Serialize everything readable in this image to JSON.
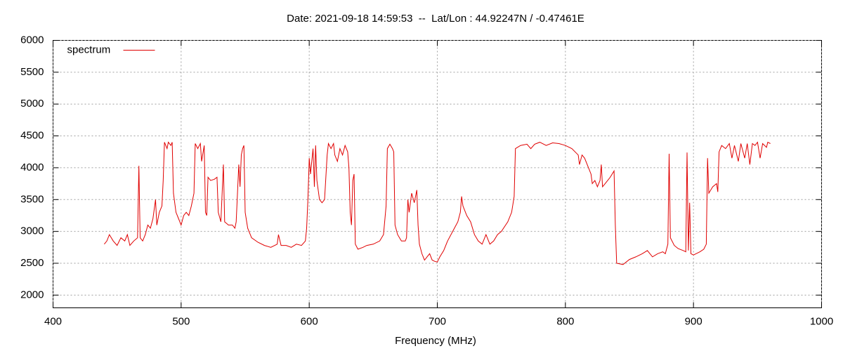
{
  "chart_data": {
    "type": "line",
    "title": "Date: 2021-09-18 14:59:53  --  Lat/Lon : 44.92247N / -0.47461E",
    "x_label": "Frequency (MHz)",
    "xlim": [
      400,
      1000
    ],
    "xticks": [
      400,
      500,
      600,
      700,
      800,
      900,
      1000
    ],
    "ylim": [
      1800,
      6000
    ],
    "yticks": [
      2000,
      2500,
      3000,
      3500,
      4000,
      4500,
      5000,
      5500,
      6000
    ],
    "grid": true,
    "legend": "top-left",
    "x": [
      440,
      442,
      444,
      447,
      450,
      453,
      456,
      458,
      460,
      463,
      466,
      467,
      468,
      470,
      472,
      474,
      476,
      478,
      480,
      481,
      483,
      485,
      486,
      487,
      489,
      490,
      492,
      493,
      494,
      496,
      498,
      500,
      502,
      504,
      506,
      508,
      510,
      511,
      513,
      515,
      516,
      518,
      519,
      520,
      521,
      523,
      526,
      528,
      529,
      531,
      533,
      534,
      537,
      540,
      542,
      543,
      545,
      546,
      547,
      548,
      549,
      550,
      552,
      555,
      560,
      565,
      570,
      575,
      576,
      578,
      582,
      586,
      590,
      594,
      597,
      598,
      599,
      600,
      601,
      603,
      604,
      605,
      606,
      608,
      610,
      612,
      614,
      615,
      617,
      619,
      620,
      622,
      624,
      626,
      628,
      630,
      631,
      632,
      633,
      634,
      635,
      636,
      638,
      642,
      645,
      650,
      655,
      658,
      660,
      661,
      663,
      665,
      666,
      667,
      669,
      672,
      675,
      676,
      677,
      678,
      680,
      682,
      684,
      685,
      686,
      688,
      690,
      692,
      694,
      696,
      698,
      700,
      702,
      705,
      708,
      712,
      716,
      718,
      719,
      720,
      723,
      726,
      729,
      732,
      735,
      738,
      741,
      744,
      747,
      750,
      755,
      758,
      760,
      761,
      765,
      770,
      773,
      776,
      780,
      785,
      790,
      795,
      800,
      805,
      810,
      811,
      813,
      815,
      818,
      820,
      821,
      823,
      825,
      827,
      828,
      829,
      831,
      833,
      835,
      838,
      839,
      840,
      845,
      850,
      855,
      860,
      864,
      868,
      872,
      876,
      878,
      880,
      881,
      882,
      885,
      888,
      892,
      894,
      895,
      896,
      897,
      898,
      900,
      902,
      905,
      908,
      910,
      911,
      912,
      915,
      918,
      919,
      920,
      922,
      925,
      928,
      930,
      932,
      935,
      937,
      940,
      942,
      944,
      946,
      948,
      950,
      952,
      954,
      957,
      958,
      960
    ],
    "series": [
      {
        "name": "spectrum",
        "color": "#e00000",
        "values": [
          2800,
          2850,
          2950,
          2850,
          2780,
          2900,
          2850,
          2950,
          2780,
          2850,
          2900,
          4030,
          2900,
          2850,
          2950,
          3100,
          3050,
          3200,
          3500,
          3100,
          3300,
          3400,
          3800,
          4400,
          4300,
          4400,
          4350,
          4400,
          3600,
          3300,
          3200,
          3100,
          3250,
          3300,
          3250,
          3400,
          3600,
          4380,
          4300,
          4380,
          4100,
          4350,
          3300,
          3250,
          3850,
          3800,
          3820,
          3850,
          3300,
          3150,
          4050,
          3150,
          3100,
          3100,
          3050,
          3150,
          4050,
          3700,
          4200,
          4300,
          4350,
          3300,
          3050,
          2900,
          2830,
          2780,
          2750,
          2800,
          2950,
          2780,
          2780,
          2750,
          2800,
          2780,
          2850,
          3050,
          3500,
          4150,
          3900,
          4300,
          3700,
          4350,
          3800,
          3500,
          3450,
          3500,
          4200,
          4380,
          4300,
          4380,
          4200,
          4100,
          4300,
          4200,
          4350,
          4250,
          4000,
          3300,
          3100,
          3800,
          3900,
          2800,
          2720,
          2750,
          2780,
          2800,
          2850,
          2950,
          3400,
          4300,
          4370,
          4300,
          4250,
          3100,
          2950,
          2850,
          2850,
          2900,
          3500,
          3300,
          3600,
          3450,
          3650,
          3100,
          2800,
          2650,
          2550,
          2600,
          2650,
          2550,
          2530,
          2520,
          2600,
          2700,
          2850,
          3000,
          3150,
          3300,
          3550,
          3400,
          3250,
          3150,
          2950,
          2850,
          2800,
          2950,
          2800,
          2850,
          2950,
          3000,
          3150,
          3300,
          3550,
          4300,
          4350,
          4370,
          4300,
          4370,
          4400,
          4350,
          4390,
          4380,
          4350,
          4300,
          4200,
          4050,
          4200,
          4150,
          4000,
          3900,
          3750,
          3800,
          3700,
          3800,
          4050,
          3700,
          3750,
          3800,
          3850,
          3950,
          3100,
          2500,
          2480,
          2560,
          2600,
          2650,
          2700,
          2600,
          2650,
          2680,
          2650,
          2800,
          4220,
          2900,
          2780,
          2730,
          2700,
          2680,
          4240,
          2700,
          3450,
          2650,
          2630,
          2650,
          2680,
          2720,
          2800,
          4150,
          3600,
          3700,
          3750,
          3620,
          4250,
          4350,
          4300,
          4380,
          4150,
          4350,
          4100,
          4380,
          4150,
          4380,
          4050,
          4380,
          4350,
          4400,
          4150,
          4380,
          4320,
          4400,
          4380
        ]
      }
    ]
  }
}
